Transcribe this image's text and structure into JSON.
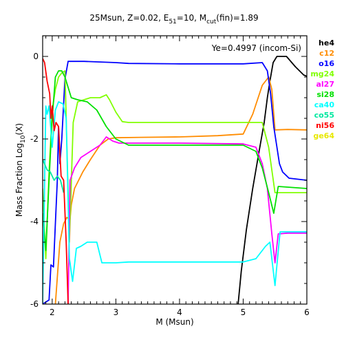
{
  "chart_data": {
    "type": "line",
    "title": "25Msun, Z=0.02, E",
    "title_parts": {
      "main": "25Msun, Z=0.02, E",
      "e_sub": "51",
      "mid": "=10, M",
      "m_sub": "cut",
      "end": "(fin)=1.89"
    },
    "annotation": "Ye=0.4997 (incom-Si)",
    "xlabel": "M (Msun)",
    "ylabel_parts": {
      "main": "Mass Fraction Log",
      "sub": "10",
      "end": "(X)"
    },
    "xlim": [
      1.85,
      6.0
    ],
    "ylim": [
      -6,
      0.5
    ],
    "x_ticks": [
      "2",
      "3",
      "4",
      "5",
      "6"
    ],
    "y_ticks": [
      "0",
      "-2",
      "-4",
      "-6"
    ],
    "legend_position": "right-outside",
    "series": [
      {
        "name": "he4",
        "color": "#000000",
        "points": [
          [
            4.92,
            -6.0
          ],
          [
            4.97,
            -5.2
          ],
          [
            5.05,
            -4.2
          ],
          [
            5.15,
            -3.2
          ],
          [
            5.25,
            -2.3
          ],
          [
            5.33,
            -1.6
          ],
          [
            5.38,
            -1.0
          ],
          [
            5.42,
            -0.6
          ],
          [
            5.47,
            -0.15
          ],
          [
            5.53,
            0.0
          ],
          [
            5.68,
            0.0
          ],
          [
            5.82,
            -0.25
          ],
          [
            5.95,
            -0.45
          ],
          [
            6.0,
            -0.48
          ]
        ]
      },
      {
        "name": "c12",
        "color": "#ff8c00",
        "points": [
          [
            2.05,
            -6.0
          ],
          [
            2.12,
            -4.5
          ],
          [
            2.18,
            -4.05
          ],
          [
            2.23,
            -3.9
          ],
          [
            2.28,
            -3.95
          ],
          [
            2.3,
            -3.6
          ],
          [
            2.35,
            -3.2
          ],
          [
            2.48,
            -2.8
          ],
          [
            2.6,
            -2.5
          ],
          [
            2.75,
            -2.15
          ],
          [
            2.88,
            -2.0
          ],
          [
            3.0,
            -1.97
          ],
          [
            3.4,
            -1.96
          ],
          [
            4.0,
            -1.95
          ],
          [
            4.6,
            -1.92
          ],
          [
            5.0,
            -1.88
          ],
          [
            5.15,
            -1.4
          ],
          [
            5.3,
            -0.7
          ],
          [
            5.4,
            -0.5
          ],
          [
            5.45,
            -0.8
          ],
          [
            5.5,
            -1.78
          ],
          [
            5.7,
            -1.77
          ],
          [
            6.0,
            -1.78
          ]
        ]
      },
      {
        "name": "o16",
        "color": "#0000ff",
        "points": [
          [
            1.85,
            -6.0
          ],
          [
            1.95,
            -5.9
          ],
          [
            1.98,
            -5.05
          ],
          [
            2.02,
            -5.1
          ],
          [
            2.08,
            -3.0
          ],
          [
            2.1,
            -1.7
          ],
          [
            2.12,
            -2.6
          ],
          [
            2.15,
            -2.0
          ],
          [
            2.2,
            -0.55
          ],
          [
            2.25,
            -0.12
          ],
          [
            2.5,
            -0.12
          ],
          [
            3.0,
            -0.15
          ],
          [
            3.2,
            -0.17
          ],
          [
            4.0,
            -0.18
          ],
          [
            5.0,
            -0.18
          ],
          [
            5.3,
            -0.15
          ],
          [
            5.38,
            -0.35
          ],
          [
            5.43,
            -0.9
          ],
          [
            5.48,
            -1.7
          ],
          [
            5.52,
            -2.1
          ],
          [
            5.57,
            -2.6
          ],
          [
            5.62,
            -2.8
          ],
          [
            5.72,
            -2.95
          ],
          [
            6.0,
            -3.0
          ]
        ]
      },
      {
        "name": "mg24",
        "color": "#80ff00",
        "points": [
          [
            1.85,
            -3.2
          ],
          [
            1.9,
            -4.9
          ],
          [
            1.95,
            -2.8
          ],
          [
            2.0,
            -1.3
          ],
          [
            2.05,
            -0.8
          ],
          [
            2.1,
            -0.5
          ],
          [
            2.15,
            -0.4
          ],
          [
            2.2,
            -0.35
          ],
          [
            2.27,
            -4.5
          ],
          [
            2.33,
            -1.6
          ],
          [
            2.4,
            -1.1
          ],
          [
            2.6,
            -1.0
          ],
          [
            2.75,
            -1.0
          ],
          [
            2.85,
            -0.93
          ],
          [
            2.9,
            -1.05
          ],
          [
            3.0,
            -1.35
          ],
          [
            3.1,
            -1.58
          ],
          [
            3.2,
            -1.6
          ],
          [
            4.0,
            -1.6
          ],
          [
            5.0,
            -1.6
          ],
          [
            5.3,
            -1.6
          ],
          [
            5.4,
            -2.2
          ],
          [
            5.5,
            -3.3
          ],
          [
            5.6,
            -3.3
          ],
          [
            6.0,
            -3.3
          ]
        ]
      },
      {
        "name": "al27",
        "color": "#ff00ff",
        "points": [
          [
            2.25,
            -6.0
          ],
          [
            2.28,
            -3.0
          ],
          [
            2.35,
            -2.7
          ],
          [
            2.45,
            -2.45
          ],
          [
            2.6,
            -2.3
          ],
          [
            2.75,
            -2.15
          ],
          [
            2.85,
            -1.95
          ],
          [
            2.95,
            -2.05
          ],
          [
            3.05,
            -2.1
          ],
          [
            3.2,
            -2.1
          ],
          [
            4.0,
            -2.1
          ],
          [
            5.0,
            -2.12
          ],
          [
            5.2,
            -2.2
          ],
          [
            5.3,
            -2.6
          ],
          [
            5.38,
            -3.2
          ],
          [
            5.45,
            -4.3
          ],
          [
            5.5,
            -5.0
          ],
          [
            5.55,
            -4.3
          ],
          [
            5.7,
            -4.28
          ],
          [
            6.0,
            -4.28
          ]
        ]
      },
      {
        "name": "si28",
        "color": "#00e000",
        "points": [
          [
            1.85,
            -3.8
          ],
          [
            1.9,
            -4.7
          ],
          [
            1.95,
            -3.0
          ],
          [
            2.0,
            -1.5
          ],
          [
            2.05,
            -0.5
          ],
          [
            2.1,
            -0.35
          ],
          [
            2.15,
            -0.35
          ],
          [
            2.2,
            -0.5
          ],
          [
            2.3,
            -1.0
          ],
          [
            2.4,
            -1.05
          ],
          [
            2.55,
            -1.1
          ],
          [
            2.7,
            -1.3
          ],
          [
            2.85,
            -1.7
          ],
          [
            3.0,
            -2.0
          ],
          [
            3.2,
            -2.15
          ],
          [
            4.0,
            -2.15
          ],
          [
            5.0,
            -2.15
          ],
          [
            5.2,
            -2.3
          ],
          [
            5.3,
            -2.7
          ],
          [
            5.4,
            -3.3
          ],
          [
            5.48,
            -3.8
          ],
          [
            5.55,
            -3.15
          ],
          [
            6.0,
            -3.2
          ]
        ]
      },
      {
        "name": "ca40",
        "color": "#00ffff",
        "points": [
          [
            1.85,
            -6.0
          ],
          [
            1.9,
            -1.2
          ],
          [
            1.92,
            -1.4
          ],
          [
            1.95,
            -1.2
          ],
          [
            2.0,
            -2.2
          ],
          [
            2.05,
            -1.3
          ],
          [
            2.1,
            -1.1
          ],
          [
            2.17,
            -1.15
          ],
          [
            2.22,
            -1.5
          ],
          [
            2.27,
            -4.9
          ],
          [
            2.32,
            -5.45
          ],
          [
            2.38,
            -4.65
          ],
          [
            2.45,
            -4.6
          ],
          [
            2.55,
            -4.5
          ],
          [
            2.7,
            -4.5
          ],
          [
            2.78,
            -5.0
          ],
          [
            3.0,
            -5.0
          ],
          [
            3.2,
            -4.98
          ],
          [
            4.0,
            -4.98
          ],
          [
            5.0,
            -4.98
          ],
          [
            5.2,
            -4.9
          ],
          [
            5.35,
            -4.6
          ],
          [
            5.42,
            -4.5
          ],
          [
            5.5,
            -5.55
          ],
          [
            5.58,
            -4.25
          ],
          [
            6.0,
            -4.25
          ]
        ]
      },
      {
        "name": "co55",
        "color": "#00e8a0",
        "points": [
          [
            1.85,
            -2.5
          ],
          [
            1.92,
            -2.75
          ],
          [
            1.97,
            -2.8
          ],
          [
            2.03,
            -3.0
          ],
          [
            2.08,
            -2.9
          ],
          [
            2.13,
            -3.0
          ],
          [
            2.18,
            -3.3
          ]
        ]
      },
      {
        "name": "ni56",
        "color": "#ff0000",
        "points": [
          [
            1.85,
            -0.05
          ],
          [
            1.88,
            -0.15
          ],
          [
            1.92,
            -0.6
          ],
          [
            1.96,
            -0.9
          ],
          [
            1.98,
            -1.5
          ],
          [
            2.0,
            -1.2
          ],
          [
            2.03,
            -1.8
          ],
          [
            2.06,
            -1.6
          ],
          [
            2.1,
            -1.7
          ],
          [
            2.14,
            -2.9
          ],
          [
            2.18,
            -3.0
          ],
          [
            2.22,
            -4.5
          ],
          [
            2.25,
            -6.0
          ]
        ]
      },
      {
        "name": "ge64",
        "color": "#e8e800",
        "points": []
      }
    ]
  }
}
